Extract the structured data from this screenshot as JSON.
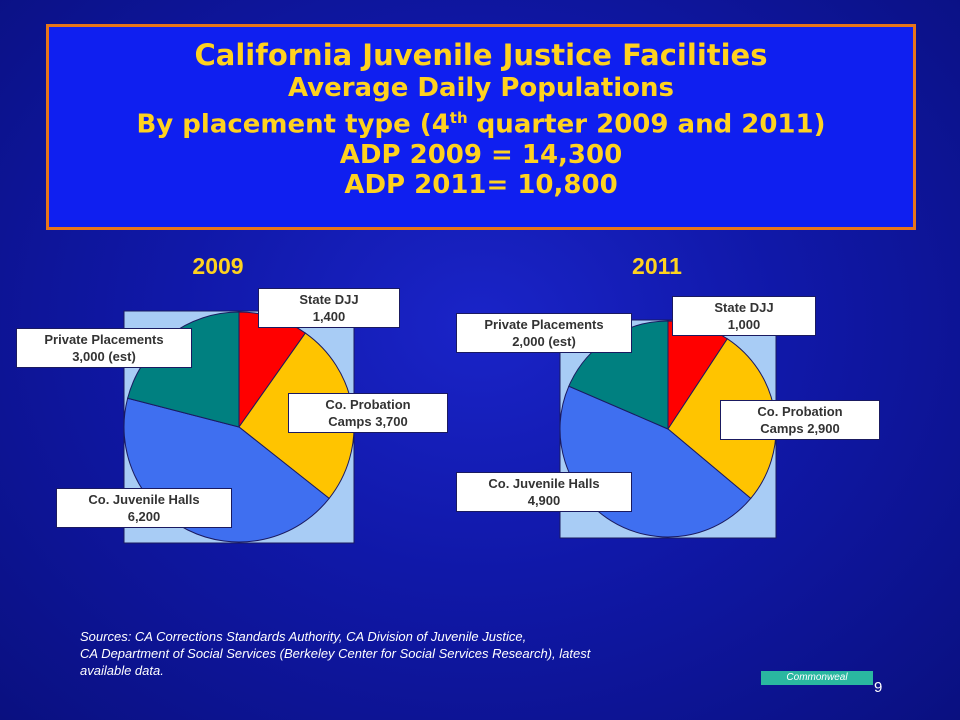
{
  "title": {
    "line1": "California Juvenile Justice Facilities",
    "line2": "Average Daily Populations",
    "line3_pre": "By placement type (4",
    "line3_sup": "th",
    "line3_post": " quarter 2009 and 2011)",
    "line4": "ADP 2009 = 14,300",
    "line5": "ADP 2011=  10,800"
  },
  "chart_data": [
    {
      "type": "pie",
      "title": "2009",
      "slices": [
        {
          "label": "State DJJ",
          "value": 1400,
          "value_text": "1,400",
          "color": "#ff0000"
        },
        {
          "label": "Co. Probation Camps",
          "value": 3700,
          "value_text": "Camps 3,700",
          "color": "#ffc400"
        },
        {
          "label": "Co. Juvenile Halls",
          "value": 6200,
          "value_text": "6,200",
          "color": "#3f6ff0"
        },
        {
          "label": "Private Placements",
          "value": 3000,
          "value_text": "3,000 (est)",
          "color": "#008080"
        }
      ]
    },
    {
      "type": "pie",
      "title": "2011",
      "slices": [
        {
          "label": "State DJJ",
          "value": 1000,
          "value_text": "1,000",
          "color": "#ff0000"
        },
        {
          "label": "Co. Probation Camps",
          "value": 2900,
          "value_text": "Camps 2,900",
          "color": "#ffc400"
        },
        {
          "label": "Co. Juvenile Halls",
          "value": 4900,
          "value_text": "4,900",
          "color": "#3f6ff0"
        },
        {
          "label": "Private Placements",
          "value": 2000,
          "value_text": "2,000 (est)",
          "color": "#008080"
        }
      ]
    }
  ],
  "labels": {
    "c2009": {
      "djj": {
        "line1": "State DJJ",
        "line2": "1,400"
      },
      "camps": {
        "line1": "Co. Probation",
        "line2": "Camps 3,700"
      },
      "halls": {
        "line1": "Co. Juvenile Halls",
        "line2": "6,200"
      },
      "private": {
        "line1": "Private Placements",
        "line2": "3,000 (est)"
      }
    },
    "c2011": {
      "djj": {
        "line1": "State DJJ",
        "line2": "1,000"
      },
      "camps": {
        "line1": "Co. Probation",
        "line2": "Camps 2,900"
      },
      "halls": {
        "line1": "Co. Juvenile Halls",
        "line2": "4,900"
      },
      "private": {
        "line1": "Private Placements",
        "line2": "2,000 (est)"
      }
    }
  },
  "sources": {
    "line1": "Sources:  CA Corrections Standards Authority, CA Division of Juvenile Justice,",
    "line2": "CA Department of Social Services (Berkeley Center for  Social Services Research), latest",
    "line3": "available data."
  },
  "logo_text": "Commonweal",
  "page_number": "9",
  "colors": {
    "title_text": "#ffd21f",
    "title_box": "#0f1ff0",
    "title_border": "#e8751a",
    "plot_area": "#a8ccf5"
  }
}
